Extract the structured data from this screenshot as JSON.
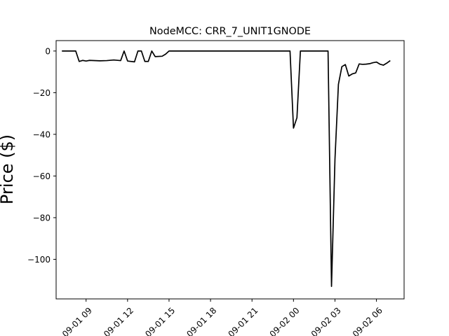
{
  "chart_data": {
    "type": "line",
    "title": "NodeMCC: CRR_7_UNIT1GNODE",
    "xlabel": "",
    "ylabel": "Price ($)",
    "x_axis_type": "datetime",
    "xlim": [
      "2018-09-01 06:50",
      "2018-09-02 08:00"
    ],
    "ylim": [
      -119,
      5
    ],
    "grid": false,
    "x_ticks": [
      {
        "value": "2018-09-01 09:00",
        "label": "09-01 09"
      },
      {
        "value": "2018-09-01 12:00",
        "label": "09-01 12"
      },
      {
        "value": "2018-09-01 15:00",
        "label": "09-01 15"
      },
      {
        "value": "2018-09-01 18:00",
        "label": "09-01 18"
      },
      {
        "value": "2018-09-01 21:00",
        "label": "09-01 21"
      },
      {
        "value": "2018-09-02 00:00",
        "label": "09-02 00"
      },
      {
        "value": "2018-09-02 03:00",
        "label": "09-02 03"
      },
      {
        "value": "2018-09-02 06:00",
        "label": "09-02 06"
      }
    ],
    "y_ticks": [
      {
        "value": 0,
        "label": "0"
      },
      {
        "value": -20,
        "label": "−20"
      },
      {
        "value": -40,
        "label": "−40"
      },
      {
        "value": -60,
        "label": "−60"
      },
      {
        "value": -80,
        "label": "−80"
      },
      {
        "value": -100,
        "label": "−100"
      }
    ],
    "series": [
      {
        "color": "#000000",
        "points": [
          [
            "2018-09-01 07:15",
            0
          ],
          [
            "2018-09-01 08:15",
            0
          ],
          [
            "2018-09-01 08:30",
            -5
          ],
          [
            "2018-09-01 08:45",
            -4.5
          ],
          [
            "2018-09-01 09:00",
            -4.8
          ],
          [
            "2018-09-01 09:15",
            -4.5
          ],
          [
            "2018-09-01 10:00",
            -4.7
          ],
          [
            "2018-09-01 10:30",
            -4.6
          ],
          [
            "2018-09-01 11:00",
            -4.3
          ],
          [
            "2018-09-01 11:30",
            -4.6
          ],
          [
            "2018-09-01 11:45",
            0
          ],
          [
            "2018-09-01 12:00",
            -4.8
          ],
          [
            "2018-09-01 12:30",
            -5.2
          ],
          [
            "2018-09-01 12:45",
            0
          ],
          [
            "2018-09-01 13:00",
            0
          ],
          [
            "2018-09-01 13:15",
            -5
          ],
          [
            "2018-09-01 13:30",
            -5
          ],
          [
            "2018-09-01 13:45",
            0
          ],
          [
            "2018-09-01 14:00",
            -2.7
          ],
          [
            "2018-09-01 14:30",
            -2.5
          ],
          [
            "2018-09-01 14:45",
            -1.5
          ],
          [
            "2018-09-01 15:00",
            0
          ],
          [
            "2018-09-01 23:45",
            0
          ],
          [
            "2018-09-02 00:00",
            -37
          ],
          [
            "2018-09-02 00:15",
            -32
          ],
          [
            "2018-09-02 00:30",
            0
          ],
          [
            "2018-09-02 02:30",
            0
          ],
          [
            "2018-09-02 02:45",
            -113
          ],
          [
            "2018-09-02 03:00",
            -52
          ],
          [
            "2018-09-02 03:15",
            -16
          ],
          [
            "2018-09-02 03:30",
            -7.5
          ],
          [
            "2018-09-02 03:45",
            -6.5
          ],
          [
            "2018-09-02 04:00",
            -12
          ],
          [
            "2018-09-02 04:15",
            -11
          ],
          [
            "2018-09-02 04:30",
            -10.5
          ],
          [
            "2018-09-02 04:45",
            -6.2
          ],
          [
            "2018-09-02 05:00",
            -6.4
          ],
          [
            "2018-09-02 05:15",
            -6.3
          ],
          [
            "2018-09-02 05:30",
            -6.1
          ],
          [
            "2018-09-02 05:45",
            -5.6
          ],
          [
            "2018-09-02 06:00",
            -5.3
          ],
          [
            "2018-09-02 06:15",
            -6.3
          ],
          [
            "2018-09-02 06:30",
            -6.8
          ],
          [
            "2018-09-02 06:45",
            -5.8
          ],
          [
            "2018-09-02 07:00",
            -4.6
          ]
        ]
      }
    ]
  }
}
